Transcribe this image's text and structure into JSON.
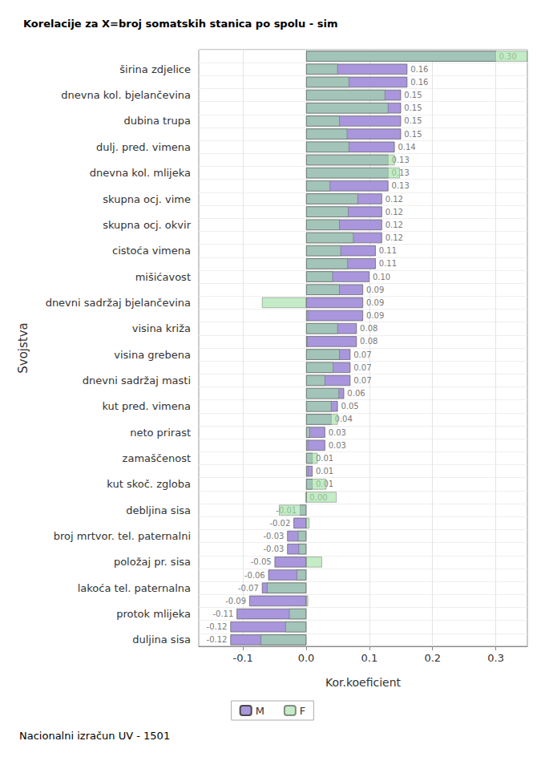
{
  "chart_data": {
    "type": "bar",
    "orientation": "horizontal",
    "title": "Korelacije za X=broj somatskih stanica po spolu - sim",
    "xlabel": "Kor.koeficient",
    "ylabel": "Svojstva",
    "footer": "Nacionalni izračun UV - 1501",
    "categories": [
      null,
      "širina zdjelice",
      null,
      "dnevna kol. bjelančevina",
      null,
      "dubina trupa",
      null,
      "dulj. pred. vimena",
      null,
      "dnevna kol. mlijeka",
      null,
      "skupna ocj. vime",
      null,
      "skupna ocj. okvir",
      null,
      "cistoća vimena",
      null,
      "mišićavost",
      null,
      "dnevni sadržaj bjelančevina",
      null,
      "visina križa",
      null,
      "visina grebena",
      null,
      "dnevni sadržaj masti",
      null,
      "kut pred. vimena",
      null,
      "neto prirast",
      null,
      "zamaščenost",
      null,
      "kut skoč. zgloba",
      null,
      "debljina sisa",
      null,
      "broj mrtvor. tel. paternalni",
      null,
      "položaj pr. sisa",
      null,
      "lakoća tel. paternalna",
      null,
      "protok mlijeka",
      null,
      "duljina sisa"
    ],
    "series": [
      {
        "name": "M",
        "color": "#a996dc",
        "data_labels": true,
        "values": [
          0.3,
          0.16,
          0.16,
          0.15,
          0.15,
          0.15,
          0.15,
          0.14,
          0.13,
          0.13,
          0.13,
          0.12,
          0.12,
          0.12,
          0.12,
          0.11,
          0.11,
          0.1,
          0.09,
          0.09,
          0.09,
          0.08,
          0.08,
          0.07,
          0.07,
          0.07,
          0.06,
          0.05,
          0.04,
          0.03,
          0.03,
          0.01,
          0.01,
          0.01,
          0.0,
          -0.01,
          -0.02,
          -0.03,
          -0.03,
          -0.05,
          -0.06,
          -0.07,
          -0.09,
          -0.11,
          -0.12,
          -0.12
        ],
        "value_labels": [
          "0.30",
          "0.16",
          "0.16",
          "0.15",
          "0.15",
          "0.15",
          "0.15",
          "0.14",
          "0.13",
          "0.13",
          "0.13",
          "0.12",
          "0.12",
          "0.12",
          "0.12",
          "0.11",
          "0.11",
          "0.10",
          "0.09",
          "0.09",
          "0.09",
          "0.08",
          "0.08",
          "0.07",
          "0.07",
          "0.07",
          "0.06",
          "0.05",
          "0.04",
          "0.03",
          "0.03",
          "0.01",
          "0.01",
          "0.01",
          "0.00",
          "-0.01",
          "-0.02",
          "-0.03",
          "-0.03",
          "-0.05",
          "-0.06",
          "-0.07",
          "-0.09",
          "-0.11",
          "-0.12",
          "-0.12"
        ]
      },
      {
        "name": "F",
        "color": "#9fe0a3",
        "values": [
          0.35,
          0.05,
          0.068,
          0.125,
          0.13,
          0.053,
          0.065,
          0.068,
          0.14,
          0.148,
          0.038,
          0.082,
          0.067,
          0.053,
          0.075,
          0.055,
          0.066,
          0.042,
          0.053,
          -0.07,
          0.003,
          0.05,
          0.002,
          0.053,
          0.043,
          0.03,
          0.052,
          0.04,
          0.05,
          0.006,
          0.003,
          0.018,
          0.003,
          0.032,
          0.048,
          -0.043,
          0.005,
          -0.013,
          -0.012,
          0.025,
          -0.015,
          -0.062,
          0.003,
          -0.027,
          -0.033,
          -0.072
        ]
      }
    ],
    "xlim": [
      -0.17,
      0.35
    ],
    "xticks": [
      -0.1,
      {
        "value": 0,
        "label": "0.0"
      },
      0.1,
      0.2,
      0.3
    ],
    "grid": true,
    "legend": "bottom"
  }
}
